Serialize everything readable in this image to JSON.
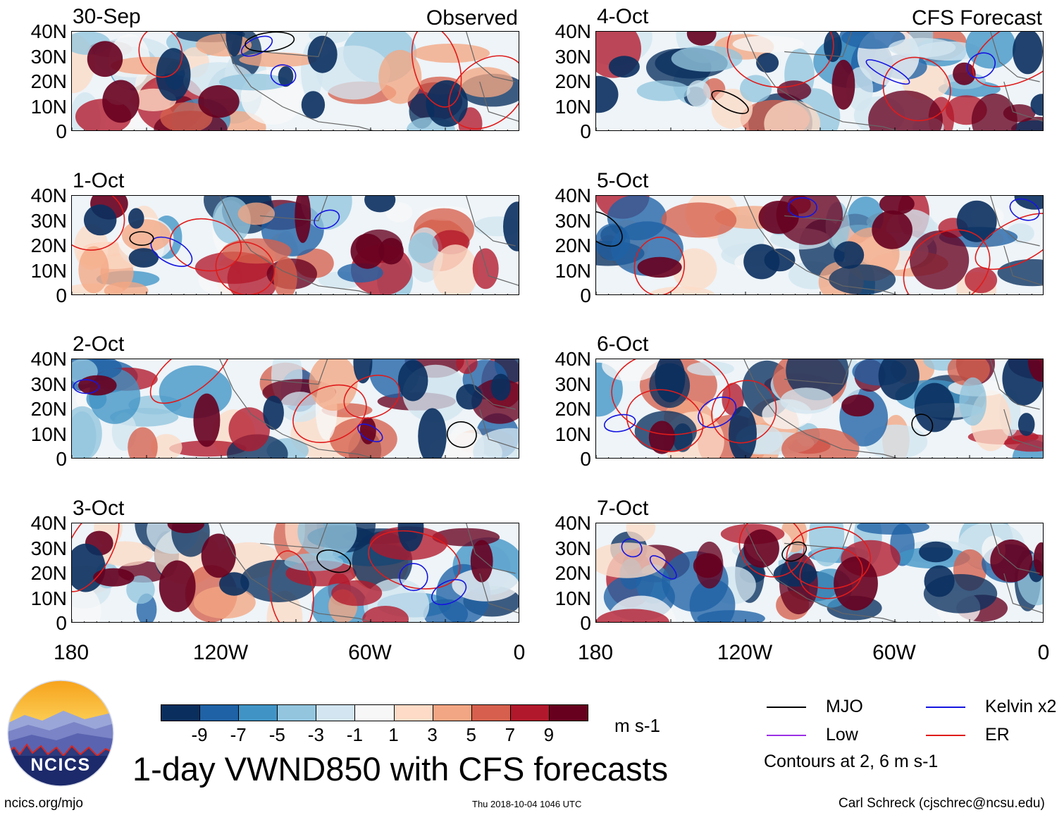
{
  "panels": [
    {
      "date": "30-Sep",
      "tag": "Observed"
    },
    {
      "date": "1-Oct",
      "tag": ""
    },
    {
      "date": "2-Oct",
      "tag": ""
    },
    {
      "date": "3-Oct",
      "tag": ""
    },
    {
      "date": "4-Oct",
      "tag": "CFS Forecast"
    },
    {
      "date": "5-Oct",
      "tag": ""
    },
    {
      "date": "6-Oct",
      "tag": ""
    },
    {
      "date": "7-Oct",
      "tag": ""
    }
  ],
  "lat_labels": [
    "40N",
    "30N",
    "20N",
    "10N",
    "0"
  ],
  "lon_labels": [
    "180",
    "120W",
    "60W",
    "0"
  ],
  "colorbar": {
    "colors": [
      "#0a2f5e",
      "#1f62a5",
      "#4094c5",
      "#93c5de",
      "#d2e5f0",
      "#f7f7f7",
      "#fddbc7",
      "#f3a683",
      "#d6604d",
      "#b2182b",
      "#67001f"
    ],
    "labels": [
      "-9",
      "-7",
      "-5",
      "-3",
      "-1",
      "1",
      "3",
      "5",
      "7",
      "9"
    ],
    "units": "m s-1"
  },
  "title": "1-day VWND850 with CFS forecasts",
  "legend": {
    "items": [
      {
        "label": "MJO",
        "color": "#000000"
      },
      {
        "label": "Kelvin x2",
        "color": "#1515e0"
      },
      {
        "label": "Low",
        "color": "#9b30e6"
      },
      {
        "label": "ER",
        "color": "#e01b1b"
      }
    ],
    "note": "Contours at 2, 6 m s-1"
  },
  "logo": {
    "text": "NCICS"
  },
  "footer": {
    "url": "ncics.org/mjo",
    "timestamp": "Thu 2018-10-04 1046 UTC",
    "credit": "Carl Schreck (cjschrec@ncsu.edu)"
  }
}
